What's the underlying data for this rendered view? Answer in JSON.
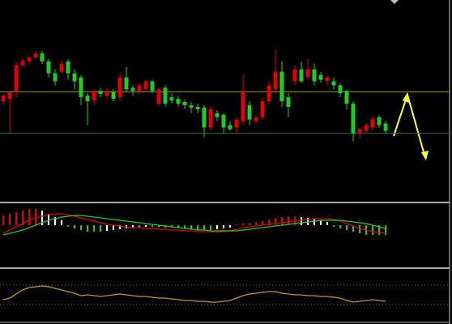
{
  "chart_data": [
    {
      "type": "candlestick",
      "up_color": "#e00000",
      "down_color": "#22cc22",
      "ylim": [
        0,
        250
      ],
      "hlines": [
        137,
        85
      ],
      "hline_colors": [
        "#a0a000",
        "#2e6b2e"
      ],
      "open": [
        125,
        128,
        137,
        170,
        175,
        180,
        185,
        175,
        160,
        162,
        175,
        160,
        155,
        132,
        126,
        138,
        132,
        137,
        130,
        155,
        142,
        137,
        140,
        150,
        122,
        142,
        130,
        128,
        124,
        120,
        118,
        117,
        92,
        110,
        108,
        95,
        92,
        100,
        120,
        100,
        105,
        125,
        140,
        162,
        130,
        150,
        165,
        155,
        165,
        158,
        150,
        150,
        145,
        138,
        122,
        85,
        88,
        92,
        105,
        97
      ],
      "high": [
        134,
        138,
        175,
        178,
        182,
        188,
        188,
        178,
        165,
        175,
        178,
        165,
        158,
        135,
        140,
        142,
        142,
        140,
        160,
        168,
        145,
        148,
        152,
        152,
        142,
        145,
        135,
        132,
        127,
        124,
        122,
        120,
        118,
        114,
        110,
        100,
        105,
        158,
        125,
        108,
        130,
        150,
        190,
        175,
        135,
        170,
        175,
        178,
        172,
        162,
        158,
        155,
        148,
        140,
        125,
        92,
        98,
        106,
        108,
        100
      ],
      "low": [
        120,
        85,
        130,
        168,
        172,
        178,
        172,
        155,
        145,
        160,
        152,
        140,
        120,
        95,
        120,
        130,
        128,
        125,
        125,
        137,
        132,
        134,
        138,
        135,
        118,
        118,
        122,
        118,
        115,
        110,
        110,
        80,
        88,
        100,
        85,
        88,
        85,
        95,
        95,
        98,
        102,
        120,
        135,
        118,
        105,
        145,
        148,
        150,
        145,
        148,
        145,
        140,
        130,
        115,
        75,
        78,
        85,
        88,
        92,
        85
      ],
      "close": [
        132,
        136,
        170,
        176,
        180,
        185,
        175,
        160,
        150,
        172,
        160,
        150,
        130,
        125,
        138,
        134,
        138,
        128,
        155,
        140,
        138,
        145,
        150,
        138,
        140,
        122,
        126,
        122,
        120,
        117,
        115,
        92,
        115,
        105,
        92,
        90,
        102,
        137,
        102,
        105,
        125,
        145,
        162,
        125,
        118,
        165,
        150,
        165,
        150,
        152,
        155,
        145,
        135,
        122,
        85,
        90,
        95,
        103,
        95,
        88
      ]
    },
    {
      "type": "macd",
      "ylim": [
        -52,
        26
      ],
      "up_color": "#e00000",
      "down_color": "#22cc22",
      "histogram": [
        12,
        14,
        16,
        18,
        20,
        20,
        18,
        14,
        10,
        6,
        -2,
        -4,
        -6,
        -8,
        -8,
        -8,
        -7,
        -6,
        -5,
        -4,
        -3,
        -3,
        -2,
        -2,
        -2,
        -3,
        -3,
        -3,
        -4,
        -5,
        -6,
        -6,
        -6,
        -5,
        -4,
        -3,
        1,
        2,
        3,
        4,
        5,
        7,
        9,
        10,
        11,
        11,
        10,
        9,
        8,
        6,
        4,
        -2,
        -4,
        -6,
        -8,
        -10,
        -12,
        -12,
        -12,
        -12
      ],
      "series": [
        {
          "color": "#e00000",
          "values": [
            -10,
            -6,
            -2,
            2,
            6,
            9,
            11,
            13,
            14,
            14,
            13,
            11,
            9,
            7,
            5,
            3,
            1,
            0,
            -1,
            -2,
            -3,
            -3,
            -4,
            -4,
            -5,
            -5,
            -6,
            -6,
            -7,
            -7,
            -8,
            -8,
            -8,
            -8,
            -8,
            -7,
            -5,
            -3,
            -2,
            -1,
            0,
            1,
            2,
            3,
            4,
            5,
            6,
            7,
            8,
            8,
            8,
            7,
            5,
            2,
            -1,
            -4,
            -6,
            -8,
            -9,
            -10
          ]
        },
        {
          "color": "#22cc22",
          "values": [
            -12,
            -10,
            -8,
            -6,
            -3,
            0,
            3,
            6,
            8,
            10,
            11,
            12,
            12,
            11,
            10,
            9,
            8,
            7,
            6,
            5,
            4,
            3,
            2,
            1,
            0,
            -1,
            -2,
            -3,
            -4,
            -5,
            -6,
            -6,
            -7,
            -7,
            -7,
            -7,
            -7,
            -6,
            -5,
            -4,
            -3,
            -2,
            -1,
            0,
            1,
            2,
            3,
            4,
            5,
            6,
            6,
            6,
            6,
            5,
            4,
            3,
            2,
            0,
            -2,
            -4
          ]
        }
      ]
    },
    {
      "type": "line",
      "ylim": [
        0,
        65
      ],
      "hlines": [
        46,
        22
      ],
      "series": [
        {
          "color": "#c8962a",
          "values": [
            28,
            30,
            35,
            40,
            43,
            44,
            45,
            44,
            42,
            40,
            38,
            36,
            33,
            34,
            33,
            32,
            33,
            34,
            35,
            34,
            33,
            32,
            32,
            31,
            30,
            30,
            29,
            28,
            27,
            27,
            26,
            26,
            25,
            25,
            26,
            27,
            30,
            33,
            35,
            36,
            37,
            38,
            38,
            36,
            35,
            34,
            34,
            33,
            33,
            32,
            32,
            31,
            30,
            27,
            25,
            26,
            27,
            28,
            27,
            26
          ]
        }
      ]
    }
  ]
}
